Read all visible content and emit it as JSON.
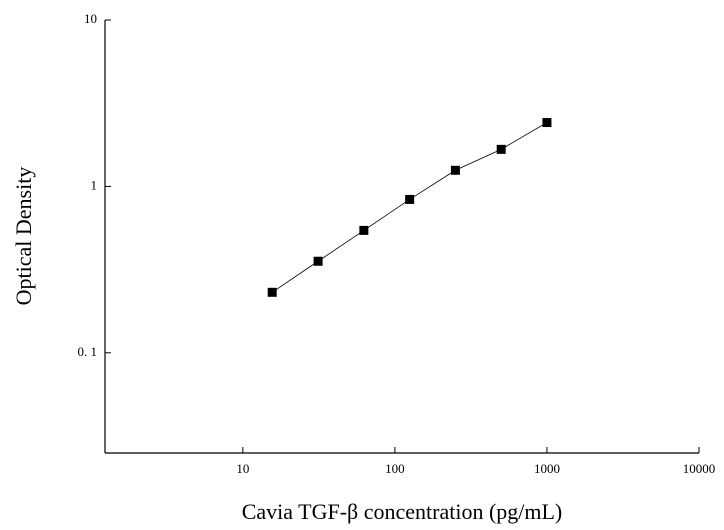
{
  "chart_data": {
    "type": "scatter",
    "xlabel": "Cavia TGF-β concentration (pg/mL)",
    "ylabel": "Optical Density",
    "xlog": true,
    "ylog": true,
    "xlim": [
      1.24,
      10000
    ],
    "ylim": [
      0.025,
      10
    ],
    "xticks": [
      10,
      100,
      1000,
      10000
    ],
    "yticks": [
      {
        "value": 0.1,
        "label": "0. 1"
      },
      1,
      10
    ],
    "series": [
      {
        "color": "#000000",
        "x": [
          15.6,
          31.25,
          62.5,
          125,
          250,
          500,
          1000
        ],
        "values": [
          0.231,
          0.355,
          0.544,
          0.835,
          1.25,
          1.67,
          2.42
        ]
      }
    ]
  }
}
